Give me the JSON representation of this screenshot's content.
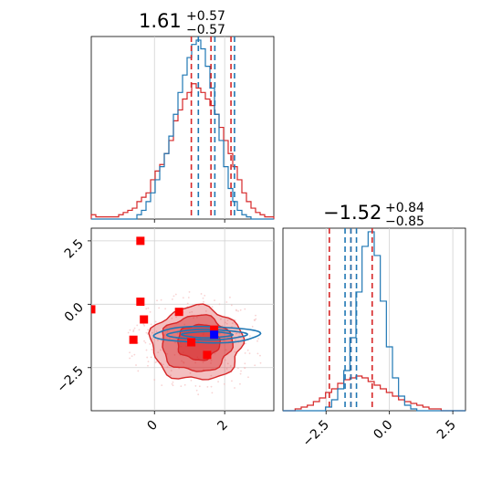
{
  "chart_data": {
    "type": "corner",
    "grid": true,
    "colors": {
      "red": "#d62728",
      "blue": "#1f77b4",
      "marker_red": "#ff0000",
      "marker_blue": "#0000ff"
    },
    "parameters": [
      {
        "title": {
          "median": "1.61",
          "upper": "+0.57",
          "lower": "−0.57"
        },
        "range": [
          -1.8,
          3.4
        ],
        "ticks": [
          0,
          2
        ],
        "tick_labels": [
          "0",
          "2"
        ],
        "red_quantiles": [
          1.05,
          1.61,
          2.18
        ],
        "blue_quantiles": [
          1.25,
          1.72,
          2.28
        ],
        "red_hist": [
          0.02,
          0.01,
          0.01,
          0.01,
          0.01,
          0.01,
          0.02,
          0.03,
          0.04,
          0.05,
          0.08,
          0.1,
          0.12,
          0.18,
          0.22,
          0.25,
          0.3,
          0.36,
          0.45,
          0.5,
          0.55,
          0.58,
          0.62,
          0.6,
          0.58,
          0.55,
          0.52,
          0.48,
          0.42,
          0.36,
          0.3,
          0.24,
          0.18,
          0.12,
          0.08,
          0.05,
          0.03,
          0.02,
          0.01,
          0.01
        ],
        "blue_hist": [
          0.0,
          0.0,
          0.0,
          0.0,
          0.0,
          0.0,
          0.0,
          0.0,
          0.0,
          0.0,
          0.02,
          0.04,
          0.08,
          0.12,
          0.18,
          0.24,
          0.3,
          0.38,
          0.48,
          0.58,
          0.66,
          0.74,
          0.8,
          0.82,
          0.78,
          0.7,
          0.6,
          0.48,
          0.36,
          0.24,
          0.14,
          0.08,
          0.04,
          0.02,
          0.01,
          0.0,
          0.0,
          0.0,
          0.0,
          0.0
        ]
      },
      {
        "title": {
          "median": "−1.52",
          "upper": "+0.84",
          "lower": "−0.85"
        },
        "range": [
          -4.2,
          3.0
        ],
        "ticks": [
          -2.5,
          0.0,
          2.5
        ],
        "tick_labels": [
          "−2.5",
          "0.0",
          "2.5"
        ],
        "red_quantiles": [
          -2.37,
          -1.52,
          -0.68
        ],
        "blue_quantiles": [
          -1.75,
          -1.52,
          -1.3
        ],
        "red_hist": [
          0.0,
          0.0,
          0.01,
          0.02,
          0.03,
          0.05,
          0.07,
          0.1,
          0.12,
          0.15,
          0.17,
          0.18,
          0.19,
          0.18,
          0.16,
          0.14,
          0.12,
          0.1,
          0.08,
          0.06,
          0.05,
          0.04,
          0.03,
          0.02,
          0.01,
          0.01,
          0.0,
          0.0,
          0.0,
          0.0
        ],
        "blue_hist": [
          0.0,
          0.0,
          0.0,
          0.0,
          0.0,
          0.0,
          0.0,
          0.02,
          0.06,
          0.12,
          0.22,
          0.4,
          0.65,
          0.9,
          0.98,
          0.85,
          0.6,
          0.35,
          0.18,
          0.08,
          0.03,
          0.01,
          0.0,
          0.0,
          0.0,
          0.0,
          0.0,
          0.0,
          0.0,
          0.0
        ]
      }
    ],
    "scatter_2d": {
      "y_range": [
        -4.2,
        3.0
      ],
      "y_ticks": [
        2.5,
        0.0,
        -2.5
      ],
      "y_tick_labels": [
        "2.5",
        "0.0",
        "−2.5"
      ],
      "red_markers": [
        {
          "x": -0.4,
          "y": 2.5
        },
        {
          "x": -0.4,
          "y": 0.1
        },
        {
          "x": -0.3,
          "y": -0.6
        },
        {
          "x": -1.8,
          "y": -0.2
        },
        {
          "x": -0.6,
          "y": -1.4
        },
        {
          "x": 0.7,
          "y": -0.3
        },
        {
          "x": 1.05,
          "y": -1.5
        },
        {
          "x": 1.5,
          "y": -2.0
        },
        {
          "x": 1.7,
          "y": -1.0
        }
      ],
      "blue_markers": [
        {
          "x": 1.7,
          "y": -1.2
        }
      ],
      "red_contours": [
        {
          "rx": 1.3,
          "ry": 1.45,
          "cx": 1.2,
          "cy": -1.55,
          "opacity": 0.45
        },
        {
          "rx": 1.0,
          "ry": 1.1,
          "cx": 1.2,
          "cy": -1.55,
          "opacity": 0.7
        },
        {
          "rx": 0.6,
          "ry": 0.7,
          "cx": 1.25,
          "cy": -1.5,
          "opacity": 0.9
        }
      ],
      "blue_contours": [
        {
          "rx": 1.5,
          "ry": 0.32,
          "cx": 1.5,
          "cy": -1.2
        },
        {
          "rx": 1.1,
          "ry": 0.2,
          "cx": 1.5,
          "cy": -1.2
        },
        {
          "rx": 0.7,
          "ry": 0.12,
          "cx": 1.5,
          "cy": -1.2
        }
      ]
    }
  }
}
